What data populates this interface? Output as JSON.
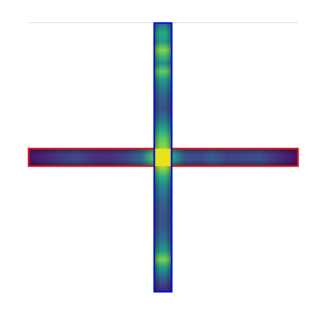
{
  "figure": {
    "description_free": true,
    "colormap": "viridis",
    "colors": {
      "background": "#ffffff",
      "rule": "#dadada",
      "vertical_box": "#0a14d8",
      "horizontal_box": "#e0141e",
      "colormap_low": "#440154",
      "colormap_mid": "#21918c",
      "colormap_high": "#fde725"
    },
    "vertical_profile": {
      "box_color": "vertical_box",
      "intensity_stops": [
        {
          "pos": 0.0,
          "value": 0.35
        },
        {
          "pos": 0.02,
          "value": 0.5
        },
        {
          "pos": 0.04,
          "value": 0.62
        },
        {
          "pos": 0.07,
          "value": 0.55
        },
        {
          "pos": 0.1,
          "value": 0.82
        },
        {
          "pos": 0.12,
          "value": 0.7
        },
        {
          "pos": 0.15,
          "value": 0.5
        },
        {
          "pos": 0.18,
          "value": 0.76
        },
        {
          "pos": 0.21,
          "value": 0.55
        },
        {
          "pos": 0.24,
          "value": 0.42
        },
        {
          "pos": 0.28,
          "value": 0.3
        },
        {
          "pos": 0.32,
          "value": 0.25
        },
        {
          "pos": 0.36,
          "value": 0.4
        },
        {
          "pos": 0.4,
          "value": 0.62
        },
        {
          "pos": 0.43,
          "value": 0.75
        },
        {
          "pos": 0.46,
          "value": 0.82
        },
        {
          "pos": 0.5,
          "value": 1.0
        },
        {
          "pos": 0.54,
          "value": 0.85
        },
        {
          "pos": 0.57,
          "value": 0.65
        },
        {
          "pos": 0.61,
          "value": 0.45
        },
        {
          "pos": 0.65,
          "value": 0.34
        },
        {
          "pos": 0.7,
          "value": 0.28
        },
        {
          "pos": 0.75,
          "value": 0.26
        },
        {
          "pos": 0.8,
          "value": 0.35
        },
        {
          "pos": 0.85,
          "value": 0.55
        },
        {
          "pos": 0.88,
          "value": 0.8
        },
        {
          "pos": 0.91,
          "value": 0.55
        },
        {
          "pos": 0.95,
          "value": 0.3
        },
        {
          "pos": 1.0,
          "value": 0.1
        }
      ]
    },
    "horizontal_profile": {
      "box_color": "horizontal_box",
      "intensity_stops": [
        {
          "pos": 0.0,
          "value": 0.05
        },
        {
          "pos": 0.05,
          "value": 0.1
        },
        {
          "pos": 0.12,
          "value": 0.18
        },
        {
          "pos": 0.18,
          "value": 0.22
        },
        {
          "pos": 0.24,
          "value": 0.15
        },
        {
          "pos": 0.3,
          "value": 0.14
        },
        {
          "pos": 0.36,
          "value": 0.2
        },
        {
          "pos": 0.42,
          "value": 0.35
        },
        {
          "pos": 0.46,
          "value": 0.7
        },
        {
          "pos": 0.5,
          "value": 1.0
        },
        {
          "pos": 0.54,
          "value": 0.55
        },
        {
          "pos": 0.58,
          "value": 0.25
        },
        {
          "pos": 0.64,
          "value": 0.22
        },
        {
          "pos": 0.68,
          "value": 0.3
        },
        {
          "pos": 0.74,
          "value": 0.2
        },
        {
          "pos": 0.8,
          "value": 0.22
        },
        {
          "pos": 0.86,
          "value": 0.24
        },
        {
          "pos": 0.92,
          "value": 0.14
        },
        {
          "pos": 1.0,
          "value": 0.05
        }
      ]
    }
  }
}
